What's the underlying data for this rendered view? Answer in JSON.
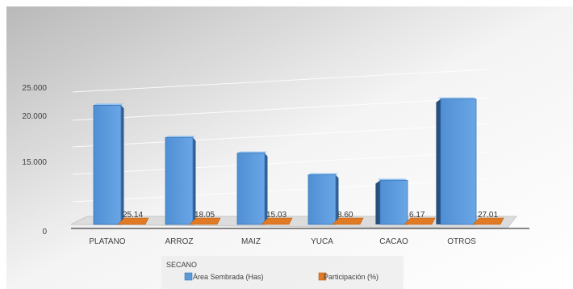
{
  "chart_data": {
    "type": "bar",
    "view": "3d",
    "categories": [
      "PLATANO",
      "ARROZ",
      "MAIZ",
      "YUCA",
      "CACAO",
      "OTROS"
    ],
    "series": [
      {
        "name": "Área Sembrada (Has)",
        "color": "#5b9bd5",
        "values": [
          21800,
          17600,
          15900,
          12100,
          10900,
          22900
        ]
      },
      {
        "name": "Participación (%)",
        "color": "#e07a24",
        "values": [
          25.14,
          18.05,
          15.03,
          8.6,
          6.17,
          27.01
        ]
      }
    ],
    "data_labels": [
      "25.14",
      "18.05",
      "15.03",
      "8.60",
      "6.17",
      "27.01"
    ],
    "y_ticks": [
      "0",
      "15.000",
      "20.000",
      "25.000"
    ],
    "y_tick_values": [
      0,
      15000,
      20000,
      25000
    ],
    "group_label": "SECANO",
    "legend": {
      "position": "bottom"
    },
    "grid": true
  }
}
